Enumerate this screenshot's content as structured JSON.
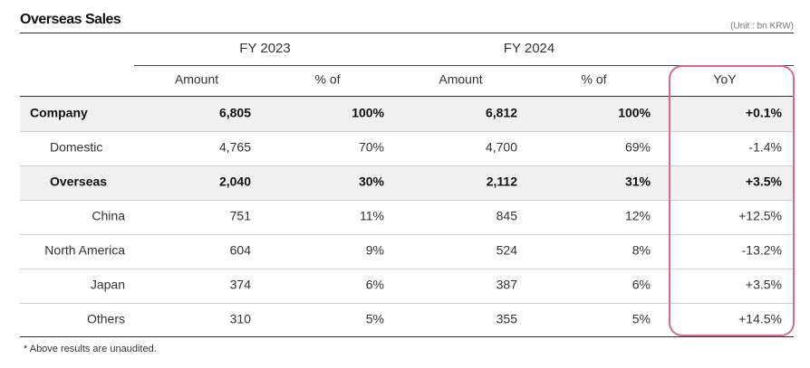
{
  "header": {
    "title": "Overseas Sales",
    "unit": "(Unit : bn KRW)"
  },
  "table": {
    "groups": [
      "FY 2023",
      "FY 2024"
    ],
    "columns": [
      "Amount",
      "% of",
      "Amount",
      "% of",
      "YoY"
    ],
    "rows": [
      [
        "Company",
        "6,805",
        "100%",
        "6,812",
        "100%",
        "+0.1%"
      ],
      [
        "Domestic",
        "4,765",
        "70%",
        "4,700",
        "69%",
        "-1.4%"
      ],
      [
        "Overseas",
        "2,040",
        "30%",
        "2,112",
        "31%",
        "+3.5%"
      ],
      [
        "China",
        "751",
        "11%",
        "845",
        "12%",
        "+12.5%"
      ],
      [
        "North America",
        "604",
        "9%",
        "524",
        "8%",
        "-13.2%"
      ],
      [
        "Japan",
        "374",
        "6%",
        "387",
        "6%",
        "+3.5%"
      ],
      [
        "Others",
        "310",
        "5%",
        "355",
        "5%",
        "+14.5%"
      ]
    ]
  },
  "footnote": "* Above results are unaudited."
}
